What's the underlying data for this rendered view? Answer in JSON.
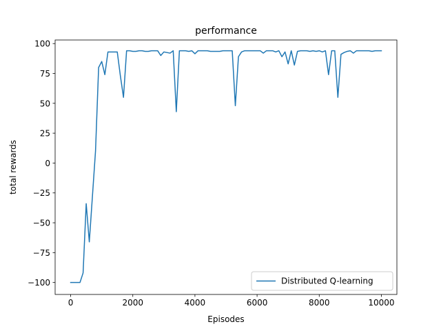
{
  "chart_data": {
    "type": "line",
    "title": "performance",
    "xlabel": "Episodes",
    "ylabel": "total rewards",
    "xlim": [
      -500,
      10500
    ],
    "ylim": [
      -110,
      103
    ],
    "x_ticks": [
      0,
      2000,
      4000,
      6000,
      8000,
      10000
    ],
    "y_ticks": [
      -100,
      -75,
      -50,
      -25,
      0,
      25,
      50,
      75,
      100
    ],
    "grid": false,
    "legend_position": "lower-right",
    "series": [
      {
        "name": "Distributed Q-learning",
        "color": "#1f77b4",
        "x": [
          0,
          100,
          200,
          300,
          400,
          500,
          600,
          700,
          800,
          900,
          1000,
          1100,
          1200,
          1300,
          1400,
          1500,
          1600,
          1700,
          1800,
          1900,
          2000,
          2100,
          2200,
          2300,
          2400,
          2500,
          2600,
          2700,
          2800,
          2900,
          3000,
          3100,
          3200,
          3300,
          3400,
          3500,
          3600,
          3700,
          3800,
          3900,
          4000,
          4100,
          4200,
          4300,
          4400,
          4500,
          4600,
          4700,
          4800,
          4900,
          5000,
          5100,
          5200,
          5300,
          5400,
          5500,
          5600,
          5700,
          5800,
          5900,
          6000,
          6100,
          6200,
          6300,
          6400,
          6500,
          6600,
          6700,
          6800,
          6900,
          7000,
          7100,
          7200,
          7300,
          7400,
          7500,
          7600,
          7700,
          7800,
          7900,
          8000,
          8100,
          8200,
          8300,
          8400,
          8500,
          8600,
          8700,
          8800,
          8900,
          9000,
          9100,
          9200,
          9300,
          9400,
          9500,
          9600,
          9700,
          9800,
          9900,
          10000
        ],
        "values": [
          -100,
          -100,
          -100,
          -100,
          -92,
          -34,
          -66,
          -28,
          10,
          80,
          85,
          74,
          93,
          93,
          93,
          93,
          73,
          55,
          94,
          94,
          93.5,
          93.5,
          94,
          94,
          93.5,
          93.5,
          94,
          94,
          94,
          90,
          93,
          92.5,
          92,
          94,
          43,
          94,
          94,
          94,
          93.5,
          94,
          91.5,
          94,
          94,
          94,
          94,
          93.5,
          93.5,
          93.5,
          93.5,
          94,
          94,
          94,
          94,
          48,
          89,
          93,
          94,
          94,
          94,
          94,
          94,
          94,
          92,
          94,
          94,
          94,
          93,
          94,
          89,
          93,
          83,
          94,
          82,
          93.5,
          94,
          94,
          94,
          93.5,
          94,
          93.5,
          94,
          93,
          94,
          74,
          94,
          94,
          55,
          91,
          92.5,
          93.5,
          94,
          92,
          94,
          94,
          94,
          94,
          94,
          93.5,
          94,
          94,
          94
        ]
      }
    ]
  }
}
